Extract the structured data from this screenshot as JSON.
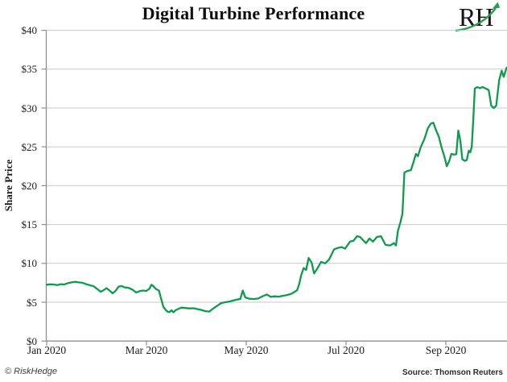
{
  "header": {
    "title": "Digital Turbine Performance",
    "logo_text": "RH"
  },
  "footer": {
    "copyright": "© RiskHedge",
    "source": "Source: Thomson Reuters"
  },
  "chart_data": {
    "type": "line",
    "title": "Digital Turbine Performance",
    "xlabel": "",
    "ylabel": "Share Price",
    "ylim": [
      0,
      40
    ],
    "x_unit": "months since Jan 1 2020",
    "xlim_months": [
      0,
      9.23
    ],
    "grid": "horizontal",
    "legend": "none",
    "line_color": "#0d9b4d",
    "grid_color": "#c9c9c9",
    "axis_color": "#8f8f8f",
    "y_ticks": [
      {
        "label": "$40",
        "value": 40
      },
      {
        "label": "$35",
        "value": 35
      },
      {
        "label": "$30",
        "value": 30
      },
      {
        "label": "$25",
        "value": 25
      },
      {
        "label": "$20",
        "value": 20
      },
      {
        "label": "$15",
        "value": 15
      },
      {
        "label": "$10",
        "value": 10
      },
      {
        "label": "$5",
        "value": 5
      },
      {
        "label": "$0",
        "value": 0
      }
    ],
    "x_ticks": [
      {
        "label": "Jan 2020",
        "m": 0
      },
      {
        "label": "Mar 2020",
        "m": 2
      },
      {
        "label": "May 2020",
        "m": 4
      },
      {
        "label": "Jul 2020",
        "m": 6
      },
      {
        "label": "Sep 2020",
        "m": 8
      }
    ],
    "series": [
      {
        "name": "Digital Turbine share price",
        "points": [
          [
            0.0,
            7.25
          ],
          [
            0.07,
            7.3
          ],
          [
            0.14,
            7.28
          ],
          [
            0.21,
            7.2
          ],
          [
            0.28,
            7.32
          ],
          [
            0.35,
            7.28
          ],
          [
            0.42,
            7.45
          ],
          [
            0.5,
            7.55
          ],
          [
            0.58,
            7.62
          ],
          [
            0.64,
            7.55
          ],
          [
            0.72,
            7.5
          ],
          [
            0.8,
            7.3
          ],
          [
            0.87,
            7.18
          ],
          [
            0.94,
            7.05
          ],
          [
            1.01,
            6.72
          ],
          [
            1.08,
            6.35
          ],
          [
            1.14,
            6.55
          ],
          [
            1.2,
            6.8
          ],
          [
            1.26,
            6.5
          ],
          [
            1.32,
            6.15
          ],
          [
            1.38,
            6.45
          ],
          [
            1.44,
            7.0
          ],
          [
            1.5,
            7.08
          ],
          [
            1.57,
            6.9
          ],
          [
            1.64,
            6.85
          ],
          [
            1.72,
            6.62
          ],
          [
            1.79,
            6.25
          ],
          [
            1.86,
            6.42
          ],
          [
            1.93,
            6.5
          ],
          [
            2.0,
            6.45
          ],
          [
            2.06,
            6.75
          ],
          [
            2.1,
            7.25
          ],
          [
            2.14,
            7.05
          ],
          [
            2.19,
            6.7
          ],
          [
            2.25,
            6.5
          ],
          [
            2.3,
            5.3
          ],
          [
            2.34,
            4.4
          ],
          [
            2.38,
            4.05
          ],
          [
            2.42,
            3.8
          ],
          [
            2.46,
            3.72
          ],
          [
            2.5,
            3.97
          ],
          [
            2.54,
            3.7
          ],
          [
            2.58,
            3.95
          ],
          [
            2.63,
            4.12
          ],
          [
            2.7,
            4.3
          ],
          [
            2.78,
            4.25
          ],
          [
            2.86,
            4.2
          ],
          [
            2.94,
            4.22
          ],
          [
            3.02,
            4.12
          ],
          [
            3.1,
            4.0
          ],
          [
            3.18,
            3.85
          ],
          [
            3.26,
            3.8
          ],
          [
            3.34,
            4.2
          ],
          [
            3.42,
            4.55
          ],
          [
            3.5,
            4.9
          ],
          [
            3.58,
            5.0
          ],
          [
            3.66,
            5.08
          ],
          [
            3.74,
            5.22
          ],
          [
            3.82,
            5.35
          ],
          [
            3.88,
            5.42
          ],
          [
            3.93,
            6.5
          ],
          [
            3.98,
            5.62
          ],
          [
            4.06,
            5.45
          ],
          [
            4.15,
            5.42
          ],
          [
            4.24,
            5.48
          ],
          [
            4.33,
            5.78
          ],
          [
            4.41,
            6.0
          ],
          [
            4.49,
            5.7
          ],
          [
            4.57,
            5.76
          ],
          [
            4.65,
            5.72
          ],
          [
            4.73,
            5.82
          ],
          [
            4.81,
            5.92
          ],
          [
            4.89,
            6.05
          ],
          [
            4.96,
            6.3
          ],
          [
            5.02,
            6.55
          ],
          [
            5.06,
            7.3
          ],
          [
            5.1,
            8.45
          ],
          [
            5.15,
            9.4
          ],
          [
            5.2,
            9.15
          ],
          [
            5.25,
            10.7
          ],
          [
            5.31,
            10.1
          ],
          [
            5.36,
            8.7
          ],
          [
            5.43,
            9.4
          ],
          [
            5.5,
            10.2
          ],
          [
            5.58,
            10.0
          ],
          [
            5.66,
            10.5
          ],
          [
            5.76,
            11.8
          ],
          [
            5.84,
            12.0
          ],
          [
            5.91,
            12.1
          ],
          [
            5.98,
            11.9
          ],
          [
            6.08,
            12.8
          ],
          [
            6.15,
            12.9
          ],
          [
            6.22,
            13.5
          ],
          [
            6.28,
            13.4
          ],
          [
            6.34,
            13.0
          ],
          [
            6.4,
            12.6
          ],
          [
            6.47,
            13.2
          ],
          [
            6.54,
            12.8
          ],
          [
            6.62,
            13.4
          ],
          [
            6.7,
            13.5
          ],
          [
            6.79,
            12.4
          ],
          [
            6.88,
            12.3
          ],
          [
            6.96,
            12.6
          ],
          [
            7.0,
            12.3
          ],
          [
            7.04,
            14.2
          ],
          [
            7.09,
            15.3
          ],
          [
            7.13,
            16.4
          ],
          [
            7.17,
            21.7
          ],
          [
            7.23,
            21.9
          ],
          [
            7.3,
            22.0
          ],
          [
            7.36,
            23.2
          ],
          [
            7.4,
            24.1
          ],
          [
            7.44,
            23.8
          ],
          [
            7.5,
            25.0
          ],
          [
            7.57,
            26.0
          ],
          [
            7.64,
            27.4
          ],
          [
            7.7,
            28.0
          ],
          [
            7.75,
            28.1
          ],
          [
            7.8,
            27.2
          ],
          [
            7.86,
            26.3
          ],
          [
            7.92,
            24.8
          ],
          [
            7.97,
            23.8
          ],
          [
            8.02,
            22.5
          ],
          [
            8.07,
            23.2
          ],
          [
            8.11,
            24.1
          ],
          [
            8.16,
            24.0
          ],
          [
            8.21,
            24.05
          ],
          [
            8.25,
            27.1
          ],
          [
            8.29,
            25.8
          ],
          [
            8.33,
            23.4
          ],
          [
            8.38,
            23.2
          ],
          [
            8.42,
            23.3
          ],
          [
            8.46,
            24.5
          ],
          [
            8.49,
            24.3
          ],
          [
            8.52,
            25.0
          ],
          [
            8.55,
            28.5
          ],
          [
            8.58,
            32.5
          ],
          [
            8.63,
            32.7
          ],
          [
            8.68,
            32.55
          ],
          [
            8.74,
            32.7
          ],
          [
            8.8,
            32.5
          ],
          [
            8.86,
            32.3
          ],
          [
            8.91,
            30.3
          ],
          [
            8.96,
            30.0
          ],
          [
            9.01,
            30.3
          ],
          [
            9.07,
            33.6
          ],
          [
            9.12,
            34.8
          ],
          [
            9.16,
            34.0
          ],
          [
            9.22,
            35.2
          ]
        ]
      }
    ]
  }
}
